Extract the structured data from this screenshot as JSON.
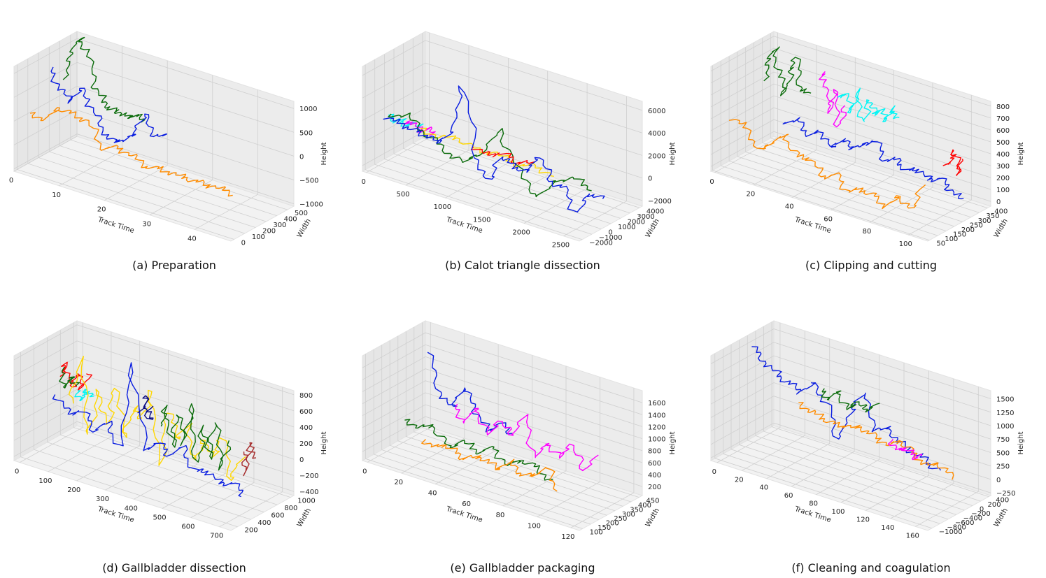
{
  "figure": {
    "panels": [
      {
        "id": "a",
        "caption": "(a) Preparation"
      },
      {
        "id": "b",
        "caption": "(b) Calot triangle dissection"
      },
      {
        "id": "c",
        "caption": "(c) Clipping and cutting"
      },
      {
        "id": "d",
        "caption": "(d) Gallbladder dissection"
      },
      {
        "id": "e",
        "caption": "(e) Gallbladder packaging"
      },
      {
        "id": "f",
        "caption": "(f) Cleaning and coagulation"
      }
    ]
  },
  "colors": {
    "blue": "#0a1ee0",
    "green": "#0a6b0a",
    "orange": "#ff8c00",
    "magenta": "#ff00ff",
    "cyan": "#00f5f5",
    "red": "#ff0000",
    "yellow": "#ffd700",
    "navy": "#0a0a80",
    "brown": "#a52a2a",
    "pane": "#eeeeee",
    "grid": "#cfcfcf"
  },
  "chart_data": [
    {
      "type": "line",
      "projection": "3d",
      "title": "(a) Preparation",
      "xlabel": "Track Time",
      "ylabel": "Width",
      "zlabel": "Height",
      "xlim": [
        0,
        48
      ],
      "ylim": [
        -30,
        560
      ],
      "zlim": [
        -1050,
        1150
      ],
      "xticks": [
        "0",
        "10",
        "20",
        "30",
        "40"
      ],
      "xtick_values": [
        0,
        10,
        20,
        30,
        40
      ],
      "yticks": [
        "0",
        "100",
        "200",
        "300",
        "400",
        "500"
      ],
      "ytick_values": [
        0,
        100,
        200,
        300,
        400,
        500
      ],
      "zticks": [
        "1000",
        "500",
        "0",
        "−500",
        "−1000"
      ],
      "ztick_values": [
        1000,
        500,
        0,
        -500,
        -1000
      ],
      "series": [
        {
          "color": "green",
          "t_range": [
            0,
            18
          ],
          "width_level": 0.78,
          "z": [
            300,
            900,
            1300,
            1050,
            400,
            100,
            0,
            0,
            -50,
            50,
            0
          ]
        },
        {
          "color": "blue",
          "t_range": [
            0,
            26
          ],
          "width_level": 0.55,
          "z": [
            700,
            400,
            150,
            500,
            200,
            -200,
            -400,
            -300,
            -100,
            400,
            0,
            100
          ]
        },
        {
          "color": "orange",
          "t_range": [
            0,
            45
          ],
          "width_level": 0.25,
          "z": [
            0,
            -50,
            300,
            250,
            200,
            -250,
            -150,
            -200,
            -350,
            -300,
            -320,
            -310,
            -330,
            -300,
            -340
          ]
        }
      ]
    },
    {
      "type": "line",
      "projection": "3d",
      "title": "(b) Calot triangle dissection",
      "xlabel": "Track Time",
      "ylabel": "Width",
      "zlabel": "Height",
      "xlim": [
        -50,
        2700
      ],
      "ylim": [
        -2300,
        4300
      ],
      "zlim": [
        -2500,
        6800
      ],
      "xticks": [
        "0",
        "500",
        "1000",
        "1500",
        "2000",
        "2500"
      ],
      "xtick_values": [
        0,
        500,
        1000,
        1500,
        2000,
        2500
      ],
      "yticks": [
        "−2000",
        "−1000",
        "0",
        "1000",
        "2000",
        "3000",
        "4000"
      ],
      "ytick_values": [
        -2000,
        -1000,
        0,
        1000,
        2000,
        3000,
        4000
      ],
      "zticks": [
        "6000",
        "4000",
        "2000",
        "0",
        "−2000"
      ],
      "ztick_values": [
        6000,
        4000,
        2000,
        0,
        -2000
      ],
      "series": [
        {
          "color": "cyan",
          "t_range": [
            0,
            400
          ],
          "width_level": 0.35,
          "z": [
            1500,
            1200,
            1400,
            1100,
            1600,
            1300
          ]
        },
        {
          "color": "magenta",
          "t_range": [
            200,
            600
          ],
          "width_level": 0.35,
          "z": [
            1200,
            1600,
            1000,
            1400,
            1200
          ]
        },
        {
          "color": "yellow",
          "t_range": [
            400,
            2100
          ],
          "width_level": 0.35,
          "z": [
            1300,
            1000,
            1500,
            900,
            1200,
            800,
            1100,
            900
          ]
        },
        {
          "color": "green",
          "t_range": [
            0,
            2600
          ],
          "width_level": 0.35,
          "z": [
            1500,
            2000,
            1000,
            0,
            -500,
            800,
            3500,
            200,
            -1500,
            500,
            1200,
            800
          ]
        },
        {
          "color": "red",
          "t_range": [
            1100,
            1800
          ],
          "width_level": 0.35,
          "z": [
            1200,
            800,
            1400,
            1000,
            1300
          ]
        },
        {
          "color": "blue",
          "t_range": [
            0,
            2700
          ],
          "width_level": 0.35,
          "z": [
            1300,
            1100,
            900,
            800,
            500,
            1800,
            6400,
            200,
            -1500,
            1000,
            600,
            400,
            2200,
            300,
            0,
            -1800,
            300,
            200
          ]
        }
      ]
    },
    {
      "type": "line",
      "projection": "3d",
      "title": "(c) Clipping and cutting",
      "xlabel": "Track Time",
      "ylabel": "Width",
      "zlabel": "Height",
      "xlim": [
        -2,
        110
      ],
      "ylim": [
        40,
        420
      ],
      "zlim": [
        -40,
        840
      ],
      "xticks": [
        "0",
        "20",
        "40",
        "60",
        "80",
        "100"
      ],
      "xtick_values": [
        0,
        20,
        40,
        60,
        80,
        100
      ],
      "yticks": [
        "50",
        "100",
        "150",
        "200",
        "250",
        "300",
        "350",
        "400"
      ],
      "ytick_values": [
        50,
        100,
        150,
        200,
        250,
        300,
        350,
        400
      ],
      "zticks": [
        "800",
        "700",
        "600",
        "500",
        "400",
        "300",
        "200",
        "100",
        "0"
      ],
      "ztick_values": [
        800,
        700,
        600,
        500,
        400,
        300,
        200,
        100,
        0
      ],
      "series": [
        {
          "color": "green",
          "t_range": [
            0,
            22
          ],
          "width_level": 0.78,
          "z": [
            500,
            700,
            800,
            600,
            450,
            650,
            780,
            550,
            500
          ]
        },
        {
          "color": "magenta",
          "t_range": [
            28,
            40
          ],
          "width_level": 0.82,
          "z": [
            700,
            650,
            400,
            600,
            300,
            480
          ]
        },
        {
          "color": "cyan",
          "t_range": [
            38,
            68
          ],
          "width_level": 0.82,
          "z": [
            550,
            600,
            450,
            650,
            400,
            620,
            500,
            560,
            480,
            600,
            520
          ]
        },
        {
          "color": "red",
          "t_range": [
            92,
            100
          ],
          "width_level": 0.86,
          "z": [
            250,
            300,
            400,
            200,
            350
          ]
        },
        {
          "color": "blue",
          "t_range": [
            18,
            108
          ],
          "width_level": 0.6,
          "z": [
            300,
            350,
            250,
            320,
            200,
            300,
            260,
            320,
            380,
            250,
            280,
            220,
            260,
            200,
            240,
            180,
            120
          ]
        },
        {
          "color": "orange",
          "t_range": [
            2,
            100
          ],
          "width_level": 0.25,
          "z": [
            350,
            300,
            150,
            250,
            350,
            200,
            220,
            100,
            150,
            50,
            100,
            80,
            20,
            150,
            60,
            300
          ]
        }
      ]
    },
    {
      "type": "line",
      "projection": "3d",
      "title": "(d) Gallbladder dissection",
      "xlabel": "Track Time",
      "ylabel": "Width",
      "zlabel": "Height",
      "xlim": [
        -20,
        740
      ],
      "ylim": [
        100,
        1050
      ],
      "zlim": [
        -450,
        850
      ],
      "xticks": [
        "0",
        "100",
        "200",
        "300",
        "400",
        "500",
        "600",
        "700"
      ],
      "xtick_values": [
        0,
        100,
        200,
        300,
        400,
        500,
        600,
        700
      ],
      "yticks": [
        "200",
        "400",
        "600",
        "800",
        "1000"
      ],
      "ytick_values": [
        200,
        400,
        600,
        800,
        1000
      ],
      "zticks": [
        "800",
        "600",
        "400",
        "200",
        "0",
        "−200",
        "−400"
      ],
      "ztick_values": [
        800,
        600,
        400,
        200,
        0,
        -200,
        -400
      ],
      "series": [
        {
          "color": "red",
          "t_range": [
            20,
            120
          ],
          "width_level": 0.55,
          "z": [
            400,
            600,
            300,
            500,
            350,
            550
          ]
        },
        {
          "color": "green",
          "t_range": [
            20,
            80
          ],
          "width_level": 0.55,
          "z": [
            500,
            300,
            450,
            350
          ]
        },
        {
          "color": "cyan",
          "t_range": [
            80,
            130
          ],
          "width_level": 0.55,
          "z": [
            300,
            200,
            350,
            250
          ]
        },
        {
          "color": "yellow",
          "t_range": [
            60,
            650
          ],
          "width_level": 0.55,
          "z": [
            100,
            700,
            -200,
            400,
            0,
            500,
            -100,
            300,
            200,
            600,
            -300,
            400,
            100,
            300,
            -100,
            200,
            0,
            300,
            -200,
            100
          ]
        },
        {
          "color": "blue",
          "t_range": [
            20,
            680
          ],
          "width_level": 0.5,
          "z": [
            200,
            0,
            100,
            -100,
            50,
            -200,
            900,
            -150,
            0,
            -100,
            50,
            -200,
            -150,
            -250,
            -200,
            -300
          ]
        },
        {
          "color": "navy",
          "t_range": [
            310,
            340
          ],
          "width_level": 0.55,
          "z": [
            300,
            500,
            200,
            400
          ]
        },
        {
          "color": "green",
          "t_range": [
            380,
            620
          ],
          "width_level": 0.5,
          "z": [
            200,
            500,
            0,
            450,
            100,
            600,
            -100,
            400,
            0,
            500,
            -50,
            300
          ]
        },
        {
          "color": "brown",
          "t_range": [
            660,
            700
          ],
          "width_level": 0.55,
          "z": [
            200,
            -50,
            350,
            150
          ]
        }
      ]
    },
    {
      "type": "line",
      "projection": "3d",
      "title": "(e) Gallbladder packaging",
      "xlabel": "Track Time",
      "ylabel": "Width",
      "zlabel": "Height",
      "xlim": [
        -3,
        125
      ],
      "ylim": [
        80,
        470
      ],
      "zlim": [
        50,
        1800
      ],
      "xticks": [
        "0",
        "20",
        "40",
        "60",
        "80",
        "100",
        "120"
      ],
      "xtick_values": [
        0,
        20,
        40,
        60,
        80,
        100,
        120
      ],
      "yticks": [
        "100",
        "150",
        "200",
        "250",
        "300",
        "350",
        "400",
        "450"
      ],
      "ytick_values": [
        100,
        150,
        200,
        250,
        300,
        350,
        400,
        450
      ],
      "zticks": [
        "1600",
        "1400",
        "1200",
        "1000",
        "800",
        "600",
        "400",
        "200"
      ],
      "ztick_values": [
        1600,
        1400,
        1200,
        1000,
        800,
        600,
        400,
        200
      ],
      "series": [
        {
          "color": "blue",
          "t_range": [
            15,
            65
          ],
          "width_level": 0.55,
          "z": [
            1700,
            1100,
            900,
            1300,
            1000,
            700,
            900,
            800
          ]
        },
        {
          "color": "magenta",
          "t_range": [
            28,
            112
          ],
          "width_level": 0.6,
          "z": [
            900,
            700,
            1000,
            600,
            900,
            700,
            1100,
            500,
            800,
            600,
            900,
            500,
            800
          ]
        },
        {
          "color": "green",
          "t_range": [
            5,
            92
          ],
          "width_level": 0.45,
          "z": [
            550,
            500,
            600,
            300,
            500,
            400,
            550,
            350,
            500,
            450,
            300
          ]
        },
        {
          "color": "orange",
          "t_range": [
            20,
            100
          ],
          "width_level": 0.35,
          "z": [
            400,
            350,
            450,
            300,
            380,
            420,
            300,
            500,
            350,
            400,
            600,
            300
          ]
        }
      ]
    },
    {
      "type": "line",
      "projection": "3d",
      "title": "(f) Cleaning and coagulation",
      "xlabel": "Track Time",
      "ylabel": "Width",
      "zlabel": "Height",
      "xlim": [
        -5,
        170
      ],
      "ylim": [
        -1100,
        450
      ],
      "zlim": [
        -300,
        1650
      ],
      "xticks": [
        "0",
        "20",
        "40",
        "60",
        "80",
        "100",
        "120",
        "140",
        "160"
      ],
      "xtick_values": [
        0,
        20,
        40,
        60,
        80,
        100,
        120,
        140,
        160
      ],
      "yticks": [
        "−1000",
        "−800",
        "−600",
        "−400",
        "−200",
        "0",
        "200",
        "400"
      ],
      "ytick_values": [
        -1000,
        -800,
        -600,
        -400,
        -200,
        0,
        200,
        400
      ],
      "zticks": [
        "1500",
        "1250",
        "1000",
        "750",
        "500",
        "250",
        "0",
        "−250"
      ],
      "ztick_values": [
        1500,
        1250,
        1000,
        750,
        500,
        250,
        0,
        -250
      ],
      "series": [
        {
          "color": "blue",
          "t_range": [
            0,
            150
          ],
          "width_level": 0.55,
          "z": [
            1500,
            1300,
            1150,
            1050,
            950,
            1200,
            900,
            300,
            900,
            1300,
            700,
            800,
            600,
            500,
            450,
            300
          ]
        },
        {
          "color": "green",
          "t_range": [
            55,
            100
          ],
          "width_level": 0.55,
          "z": [
            1100,
            1000,
            1200,
            900,
            1100,
            1000,
            1150
          ]
        },
        {
          "color": "orange",
          "t_range": [
            40,
            165
          ],
          "width_level": 0.5,
          "z": [
            800,
            700,
            650,
            600,
            650,
            700,
            600,
            550,
            700,
            500,
            400,
            500,
            300
          ]
        },
        {
          "color": "magenta",
          "t_range": [
            115,
            140
          ],
          "width_level": 0.5,
          "z": [
            650,
            500,
            600,
            450,
            550
          ]
        }
      ]
    }
  ]
}
